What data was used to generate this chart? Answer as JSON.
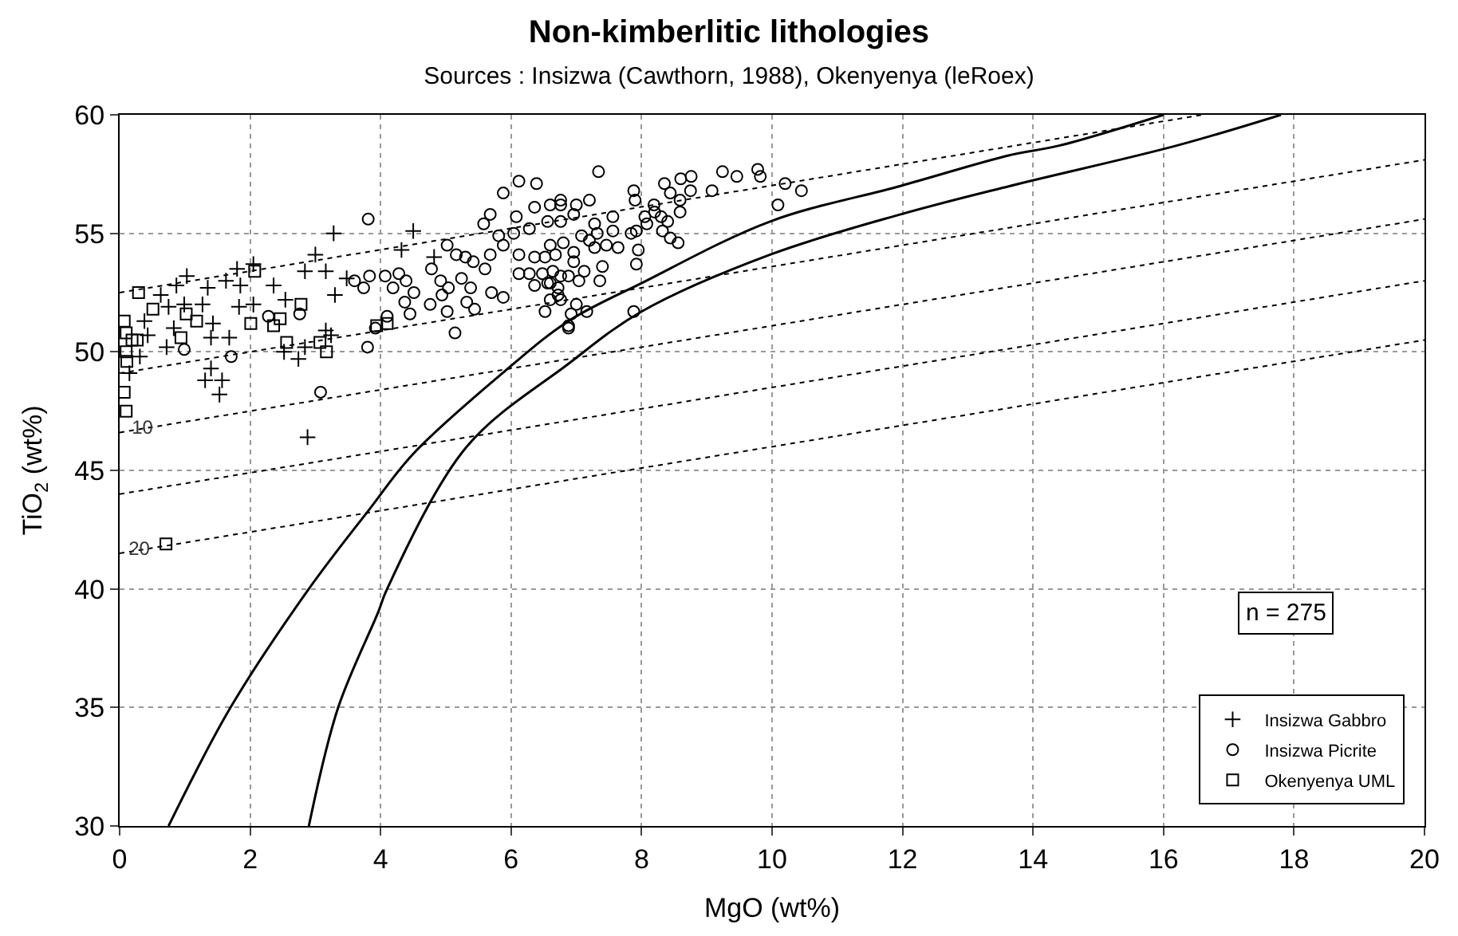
{
  "chart_data": {
    "type": "scatter",
    "title": "Non-kimberlitic lithologies",
    "subtitle": "Sources : Insizwa (Cawthorn, 1988), Okenyenya (leRoex)",
    "xlabel": "MgO (wt%)",
    "ylabel": "TiO$_{2}$ (wt%)",
    "xlim": [
      0,
      20
    ],
    "ylim": [
      30,
      60
    ],
    "xticks": [
      0,
      2,
      4,
      6,
      8,
      10,
      12,
      14,
      16,
      18,
      20
    ],
    "yticks": [
      30,
      35,
      40,
      45,
      50,
      55,
      60
    ],
    "grid": true,
    "legend": "bottom right",
    "annotations": [
      {
        "text": "10",
        "x": 0.35,
        "y": 46.75
      },
      {
        "text": "20",
        "x": 0.3,
        "y": 41.65
      },
      "n = 275"
    ],
    "series": [
      {
        "name": "Insizwa Gabbro",
        "marker": "cross",
        "color": "#000000",
        "x": [
          0.63,
          0.87,
          1.03,
          1.35,
          1.63,
          1.85,
          2.05,
          1.8,
          0.75,
          0.99,
          1.27,
          0.38,
          0.43,
          0.31,
          0.15,
          0.72,
          1.4,
          1.68,
          1.43,
          0.83,
          1.83,
          2.05,
          2.36,
          2.54,
          2.52,
          2.74,
          2.84,
          3.0,
          3.16,
          3.28,
          3.3,
          3.48,
          3.16,
          3.24,
          2.84,
          4.32,
          4.5,
          4.82,
          1.4,
          1.31,
          1.57,
          1.53,
          2.88
        ],
        "values": [
          52.4,
          52.8,
          53.2,
          52.7,
          53.0,
          52.8,
          53.7,
          53.5,
          51.9,
          52.0,
          52.0,
          51.3,
          50.7,
          49.8,
          49.1,
          50.2,
          50.6,
          50.6,
          51.2,
          51.0,
          51.9,
          52.0,
          52.8,
          52.2,
          50.0,
          49.7,
          53.4,
          54.1,
          53.4,
          55.0,
          52.4,
          53.1,
          50.9,
          50.7,
          50.2,
          54.3,
          55.1,
          54.0,
          49.3,
          48.8,
          48.8,
          48.2,
          46.4
        ]
      },
      {
        "name": "Insizwa Picrite",
        "marker": "circle",
        "color": "#000000",
        "x": [
          3.81,
          0.99,
          1.71,
          2.28,
          2.76,
          3.08,
          3.8,
          3.6,
          3.74,
          3.83,
          4.07,
          4.19,
          4.28,
          4.39,
          4.37,
          4.51,
          4.45,
          4.1,
          3.92,
          4.78,
          5.02,
          5.16,
          5.3,
          5.42,
          5.6,
          4.92,
          5.04,
          5.24,
          5.38,
          4.94,
          4.76,
          5.02,
          5.32,
          5.44,
          5.14,
          5.68,
          5.7,
          5.88,
          5.58,
          5.68,
          5.88,
          6.12,
          6.39,
          6.08,
          5.88,
          5.81,
          6.04,
          6.28,
          6.12,
          6.36,
          6.36,
          6.6,
          6.76,
          6.56,
          6.76,
          6.6,
          6.8,
          6.28,
          6.48,
          6.36,
          6.6,
          6.76,
          6.72,
          6.52,
          6.88,
          6.12,
          7.34,
          6.76,
          7.0,
          7.2,
          6.96,
          7.56,
          7.28,
          7.08,
          7.32,
          7.56,
          7.84,
          7.88,
          7.9,
          8.19,
          8.35,
          8.44,
          8.6,
          8.76,
          8.75,
          8.59,
          9.08,
          9.24,
          9.46,
          9.78,
          9.82,
          10.2,
          10.45,
          10.09,
          8.59,
          8.4,
          8.3,
          8.2,
          8.08,
          8.05,
          8.32,
          8.44,
          8.56,
          7.92,
          7.95,
          7.92,
          7.64,
          7.46,
          7.28,
          7.2,
          7.4,
          7.36,
          7.12,
          6.96,
          6.96,
          6.68,
          6.52,
          6.64,
          6.88,
          7.04,
          6.56,
          6.72,
          6.76,
          6.6,
          7.0,
          6.92,
          7.16,
          6.88,
          7.88
        ],
        "values": [
          55.6,
          50.1,
          49.8,
          51.5,
          51.6,
          48.3,
          50.2,
          53.0,
          52.7,
          53.2,
          53.2,
          52.7,
          53.3,
          53.0,
          52.1,
          52.5,
          51.6,
          51.5,
          51.0,
          53.5,
          54.5,
          54.1,
          54.0,
          53.8,
          53.5,
          53.0,
          52.7,
          53.1,
          52.7,
          52.4,
          52.0,
          51.7,
          52.1,
          51.8,
          50.8,
          54.1,
          52.5,
          52.3,
          55.4,
          55.8,
          56.7,
          57.2,
          57.1,
          55.7,
          54.5,
          54.9,
          55.0,
          55.2,
          54.1,
          54.0,
          56.1,
          56.2,
          56.4,
          55.5,
          55.5,
          54.5,
          54.6,
          53.3,
          53.3,
          52.8,
          52.9,
          53.2,
          52.4,
          51.7,
          51.1,
          53.3,
          57.6,
          56.2,
          56.2,
          56.4,
          55.8,
          55.7,
          55.4,
          54.9,
          55.0,
          55.1,
          55.0,
          56.8,
          56.4,
          56.2,
          57.1,
          56.7,
          57.3,
          57.4,
          56.8,
          56.4,
          56.8,
          57.6,
          57.4,
          57.7,
          57.4,
          57.1,
          56.8,
          56.2,
          55.9,
          55.5,
          55.7,
          55.9,
          55.4,
          55.7,
          55.1,
          54.8,
          54.6,
          55.1,
          54.3,
          53.7,
          54.4,
          54.5,
          54.4,
          54.7,
          53.6,
          53.0,
          53.4,
          54.2,
          53.8,
          54.1,
          54.0,
          53.4,
          53.2,
          53.0,
          52.9,
          52.7,
          52.2,
          52.2,
          52.0,
          51.6,
          51.7,
          51.0,
          51.7
        ]
      },
      {
        "name": "Okenyenya UML",
        "marker": "square",
        "color": "#000000",
        "x": [
          0.29,
          0.51,
          0.07,
          0.19,
          0.1,
          0.11,
          0.07,
          0.1,
          0.94,
          1.02,
          1.18,
          2.07,
          2.01,
          2.36,
          2.46,
          2.78,
          2.56,
          3.07,
          3.17,
          3.94,
          4.1,
          0.71,
          0.1,
          0.27
        ],
        "values": [
          52.5,
          51.8,
          51.3,
          50.5,
          50.0,
          49.6,
          48.3,
          47.5,
          50.6,
          51.6,
          51.3,
          53.4,
          51.2,
          51.1,
          51.4,
          52.0,
          50.4,
          50.4,
          50.0,
          51.1,
          51.2,
          41.9,
          50.8,
          50.5
        ]
      },
      {
        "type": "line",
        "line_style": "solid",
        "color": "#000000",
        "x": [
          0.75,
          1.7,
          2.9,
          3.84,
          4.5,
          5.91,
          6.88,
          8.0,
          9.97,
          11.97,
          13.65,
          14.4,
          16.0
        ],
        "values": [
          30,
          35,
          40,
          43.4,
          45.7,
          49.2,
          51.3,
          52.9,
          55.5,
          57.0,
          58.3,
          58.7,
          60
        ]
      },
      {
        "type": "line",
        "line_style": "solid",
        "color": "#000000",
        "x": [
          2.9,
          3.35,
          3.96,
          4.1,
          5.32,
          6.88,
          8.0,
          9.97,
          11.97,
          13.65,
          16.2,
          17.8
        ],
        "values": [
          30,
          35,
          39.0,
          40,
          46.0,
          49.5,
          51.7,
          54.1,
          55.8,
          57.0,
          58.7,
          60
        ]
      },
      {
        "type": "line",
        "line_style": "dotted",
        "color": "#000000",
        "x": [
          0,
          16.6
        ],
        "values": [
          52.5,
          60
        ]
      },
      {
        "type": "line",
        "line_style": "dotted",
        "color": "#000000",
        "x": [
          0,
          20
        ],
        "values": [
          49.1,
          58.1
        ]
      },
      {
        "type": "line",
        "line_style": "dotted",
        "color": "#000000",
        "x": [
          0,
          20
        ],
        "values": [
          46.6,
          55.6
        ]
      },
      {
        "type": "line",
        "line_style": "dotted",
        "color": "#000000",
        "x": [
          0,
          20
        ],
        "values": [
          44.0,
          53.0
        ]
      },
      {
        "type": "line",
        "line_style": "dotted",
        "color": "#000000",
        "x": [
          0,
          20
        ],
        "values": [
          41.5,
          50.5
        ]
      }
    ]
  }
}
